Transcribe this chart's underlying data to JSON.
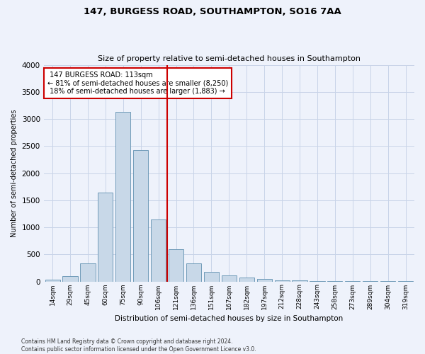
{
  "title": "147, BURGESS ROAD, SOUTHAMPTON, SO16 7AA",
  "subtitle": "Size of property relative to semi-detached houses in Southampton",
  "xlabel": "Distribution of semi-detached houses by size in Southampton",
  "ylabel": "Number of semi-detached properties",
  "footnote1": "Contains HM Land Registry data © Crown copyright and database right 2024.",
  "footnote2": "Contains public sector information licensed under the Open Government Licence v3.0.",
  "categories": [
    "14sqm",
    "29sqm",
    "45sqm",
    "60sqm",
    "75sqm",
    "90sqm",
    "106sqm",
    "121sqm",
    "136sqm",
    "151sqm",
    "167sqm",
    "182sqm",
    "197sqm",
    "212sqm",
    "228sqm",
    "243sqm",
    "258sqm",
    "273sqm",
    "289sqm",
    "304sqm",
    "319sqm"
  ],
  "values": [
    30,
    100,
    340,
    1640,
    3130,
    2430,
    1140,
    600,
    330,
    175,
    110,
    70,
    45,
    25,
    15,
    10,
    8,
    5,
    4,
    3,
    3
  ],
  "bar_color": "#c8d8e8",
  "bar_edge_color": "#6090b0",
  "property_label": "147 BURGESS ROAD: 113sqm",
  "pct_smaller": 81,
  "n_smaller": 8250,
  "pct_larger": 18,
  "n_larger": 1883,
  "vline_color": "#cc0000",
  "annotation_box_color": "#cc0000",
  "ylim": [
    0,
    4000
  ],
  "yticks": [
    0,
    500,
    1000,
    1500,
    2000,
    2500,
    3000,
    3500,
    4000
  ],
  "grid_color": "#c8d4e8",
  "background_color": "#eef2fb",
  "vline_pos": 6.5
}
